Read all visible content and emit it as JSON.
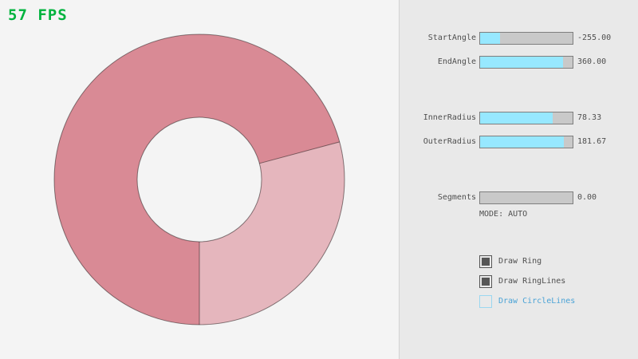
{
  "fps": {
    "text": "57 FPS"
  },
  "ring": {
    "start_angle": -255.0,
    "end_angle": 360.0,
    "inner_radius": 78.33,
    "outer_radius": 181.67,
    "segments": 0,
    "mode": "AUTO",
    "color_overlap": "#d98a95",
    "color_single": "#e5b6bd",
    "outline_color": "rgba(0,0,0,0.45)"
  },
  "panel": {
    "sliders": [
      {
        "label": "StartAngle",
        "value": "-255.00",
        "fill_pct": 21.7
      },
      {
        "label": "EndAngle",
        "value": "360.00",
        "fill_pct": 90
      },
      {
        "label": "InnerRadius",
        "value": "78.33",
        "fill_pct": 78.3
      },
      {
        "label": "OuterRadius",
        "value": "181.67",
        "fill_pct": 90.8
      },
      {
        "label": "Segments",
        "value": "0.00",
        "fill_pct": 0
      }
    ],
    "mode_label": "MODE: AUTO",
    "checkboxes": [
      {
        "label": "Draw Ring",
        "checked": true
      },
      {
        "label": "Draw RingLines",
        "checked": true
      },
      {
        "label": "Draw CircleLines",
        "checked": false
      }
    ]
  },
  "colors": {
    "fps_green": "#00b33e",
    "slider_fill_cyan": "#97e8ff",
    "panel_bg": "#e9e9e9",
    "main_bg": "#f4f4f4",
    "focused_blue": "#4ba3d6"
  }
}
